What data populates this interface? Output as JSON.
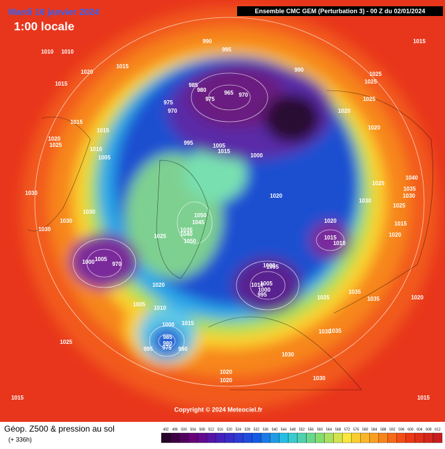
{
  "header": {
    "date": "Mardi 16 janvier 2024",
    "time": "1:00 locale",
    "run": "Ensemble CMC GEM  (Perturbation 3)  -  00 Z du 02/01/2024"
  },
  "footer": {
    "title": "Géop. Z500 & pression au sol",
    "lead": "(+ 336h)",
    "copyright": "Copyright © 2024 Meteociel.fr"
  },
  "isobar_labels": [
    "1010",
    "1010",
    "1020",
    "1015",
    "1015",
    "990",
    "995",
    "990",
    "1025",
    "1025",
    "1015",
    "985",
    "980",
    "975",
    "970",
    "975",
    "965",
    "970",
    "1020",
    "1025",
    "1020",
    "1015",
    "1015",
    "1020",
    "1025",
    "1010",
    "1005",
    "995",
    "1005",
    "1015",
    "1000",
    "1040",
    "1035",
    "1030",
    "1025",
    "1020",
    "1030",
    "1025",
    "1030",
    "1030",
    "1030",
    "1030",
    "1050",
    "1045",
    "1050",
    "1035",
    "1040",
    "1025",
    "1020",
    "1015",
    "1020",
    "1015",
    "1010",
    "1000",
    "1005",
    "970",
    "1000",
    "1005",
    "1010",
    "1005",
    "1000",
    "995",
    "1020",
    "1005",
    "1010",
    "1025",
    "1035",
    "1035",
    "1020",
    "1000",
    "1015",
    "985",
    "980",
    "975",
    "990",
    "995",
    "1025",
    "1030",
    "1035",
    "1030",
    "1020",
    "1020",
    "1030",
    "1015",
    "1015"
  ],
  "color_scale": [
    492,
    496,
    500,
    504,
    508,
    512,
    516,
    520,
    524,
    528,
    532,
    536,
    540,
    544,
    548,
    552,
    556,
    560,
    564,
    568,
    572,
    576,
    580,
    584,
    588,
    592,
    596,
    600,
    604,
    608,
    612
  ]
}
